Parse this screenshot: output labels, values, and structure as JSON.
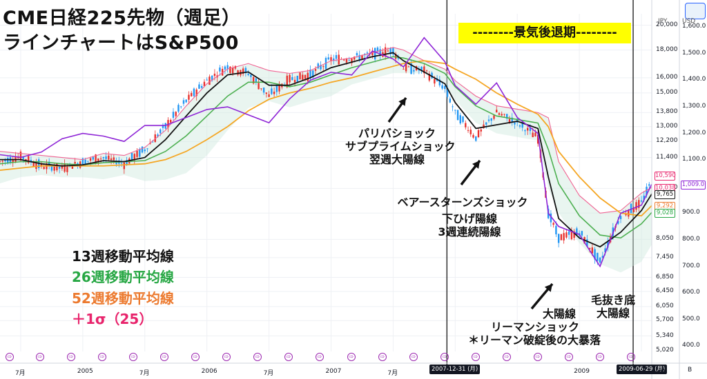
{
  "titles": {
    "line1": "CME日経225先物（週足）",
    "line2": "ラインチャートはS&P500"
  },
  "recession_label": "--------景気後退期--------",
  "legend": [
    {
      "text": "13週移動平均線",
      "color": "#111111"
    },
    {
      "text": "26週移動平均線",
      "color": "#27a744"
    },
    {
      "text": "52週移動平均線",
      "color": "#ec7a2f"
    },
    {
      "text": "＋1σ（25）",
      "color": "#e8246c"
    }
  ],
  "annotations": {
    "paribas": [
      "パリバショック",
      "サブプライムショック",
      "翌週大陽線"
    ],
    "bear": [
      "ベアースターンズショック"
    ],
    "bear_sub": [
      "下ひげ陽線",
      "3週連続陽線"
    ],
    "lehman": [
      "大陽線",
      "リーマンショック",
      "＊リーマン破綻後の大暴落"
    ],
    "bottom": [
      "毛抜き底",
      "大陽線"
    ]
  },
  "axes": {
    "left_unit": "JPY",
    "right_unit": "USD",
    "jpy_ticks": [
      "20,000",
      "18,000",
      "16,000",
      "15,000",
      "13,800",
      "13,000",
      "12,200",
      "11,400",
      "10,000",
      "9,000",
      "8,050",
      "7,450",
      "6,850",
      "6,450",
      "6,050",
      "5,700",
      "5,340",
      "5,020"
    ],
    "usd_ticks": [
      "1,600.0",
      "1,500.0",
      "1,400.0",
      "1,300.0",
      "1,200.0",
      "1,100.0",
      "900.0",
      "800.0",
      "700.0",
      "600.0",
      "500.0",
      "400.0"
    ],
    "x_ticks": [
      "7月",
      "2005",
      "7月",
      "2006",
      "7月",
      "2007",
      "7月",
      "2009"
    ],
    "event_marker": "⇨",
    "corner_left": "A",
    "corner_right": "B"
  },
  "price_tags": [
    {
      "value": "10,590",
      "color": "#e8246c"
    },
    {
      "value": "10,038",
      "color": "#e8246c"
    },
    {
      "value": "9,765",
      "color": "#111111"
    },
    {
      "value": "9,292",
      "color": "#ec7a2f"
    },
    {
      "value": "9,028",
      "color": "#27a744"
    }
  ],
  "sp_tag": "1,009.0",
  "date_tags": [
    "2007-12-31 (月)",
    "2009-06-29 (月)"
  ],
  "chart_data": {
    "type": "line",
    "title": "CME日経225先物（週足）",
    "subtitle": "ラインチャートはS&P500",
    "x_range": [
      "2004-05",
      "2009-08"
    ],
    "y_left_unit": "JPY",
    "y_right_unit": "USD",
    "y_left_log": true,
    "y_left_range": [
      5000,
      21000
    ],
    "y_right_range": [
      380,
      1650
    ],
    "grid": true,
    "legend_position": "left-bottom",
    "vertical_markers": [
      "2007-12-31",
      "2009-06-29"
    ],
    "x": [
      "2004-05",
      "2004-07",
      "2004-09",
      "2004-11",
      "2005-01",
      "2005-03",
      "2005-05",
      "2005-07",
      "2005-09",
      "2005-11",
      "2006-01",
      "2006-03",
      "2006-05",
      "2006-07",
      "2006-09",
      "2006-11",
      "2007-01",
      "2007-03",
      "2007-05",
      "2007-07",
      "2007-08",
      "2007-10",
      "2007-12",
      "2008-01",
      "2008-03",
      "2008-05",
      "2008-07",
      "2008-09",
      "2008-10",
      "2008-11",
      "2009-01",
      "2009-03",
      "2009-05",
      "2009-07",
      "2009-08"
    ],
    "series": [
      {
        "name": "CME日経225先物",
        "axis": "left",
        "values": [
          11200,
          11450,
          11000,
          10900,
          11200,
          11400,
          11100,
          11800,
          13000,
          14500,
          15800,
          16800,
          16300,
          14800,
          15900,
          16200,
          17300,
          17400,
          17700,
          18000,
          16700,
          16500,
          15300,
          13800,
          12400,
          13800,
          13200,
          12400,
          9000,
          8100,
          8300,
          7300,
          8900,
          9400,
          10300
        ]
      },
      {
        "name": "S&P500",
        "axis": "right",
        "values": [
          1120,
          1110,
          1130,
          1180,
          1200,
          1190,
          1170,
          1230,
          1230,
          1260,
          1290,
          1300,
          1270,
          1240,
          1330,
          1400,
          1430,
          1420,
          1510,
          1480,
          1450,
          1560,
          1470,
          1380,
          1310,
          1390,
          1260,
          1200,
          900,
          850,
          820,
          700,
          900,
          930,
          1009
        ]
      },
      {
        "name": "13週移動平均線",
        "axis": "left",
        "values": [
          11300,
          11300,
          11100,
          11000,
          11050,
          11250,
          11200,
          11400,
          12300,
          13600,
          15000,
          16200,
          16400,
          15500,
          15500,
          16000,
          16700,
          17100,
          17500,
          17800,
          17200,
          16400,
          15600,
          14400,
          12900,
          13100,
          13300,
          12900,
          10500,
          8800,
          8100,
          7800,
          8300,
          9100,
          9765
        ]
      },
      {
        "name": "26週移動平均線",
        "axis": "left",
        "values": [
          11100,
          11200,
          11200,
          11100,
          11050,
          11150,
          11200,
          11250,
          11700,
          12500,
          13600,
          14800,
          15700,
          15700,
          15400,
          15700,
          16200,
          16700,
          17100,
          17500,
          17400,
          17000,
          16300,
          15400,
          14200,
          13600,
          13400,
          13200,
          11800,
          10200,
          8900,
          8200,
          8100,
          8600,
          9028
        ]
      },
      {
        "name": "52週移動平均線",
        "axis": "left",
        "values": [
          10800,
          10900,
          11000,
          11000,
          11000,
          11000,
          11050,
          11100,
          11300,
          11700,
          12300,
          13000,
          13900,
          14600,
          15000,
          15300,
          15700,
          16000,
          16400,
          16800,
          17000,
          17200,
          17000,
          16600,
          15900,
          15000,
          14300,
          13700,
          13000,
          11700,
          10500,
          9600,
          9000,
          8900,
          9292
        ]
      },
      {
        "name": "＋1σ（25）",
        "axis": "left",
        "values": [
          11700,
          11600,
          11500,
          11400,
          11300,
          11600,
          11500,
          11900,
          12800,
          14200,
          15600,
          16600,
          17000,
          16500,
          16300,
          16500,
          17200,
          17400,
          17800,
          18200,
          18000,
          17200,
          16600,
          15800,
          14800,
          14200,
          14000,
          13800,
          13500,
          11200,
          9700,
          9000,
          9100,
          9800,
          10038
        ]
      }
    ]
  }
}
